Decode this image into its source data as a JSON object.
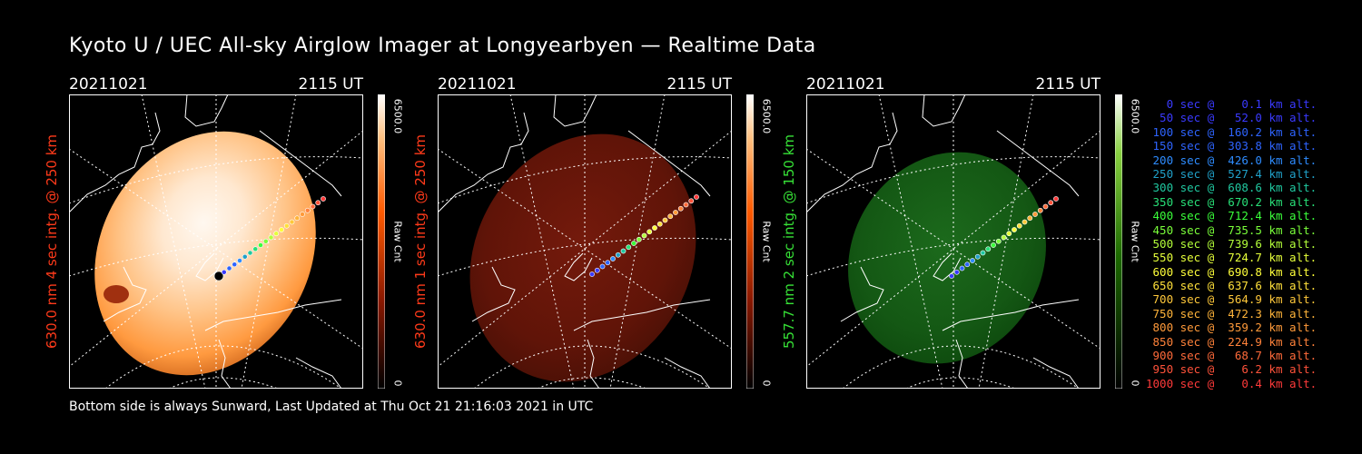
{
  "title": "Kyoto U / UEC All-sky Airglow Imager at Longyearbyen — Realtime Data",
  "footer": "Bottom side is always Sunward, Last Updated at Thu Oct 21 21:16:03 2021 in UTC",
  "panels": [
    {
      "date": "20211021",
      "time": "2115 UT",
      "ylabel": "630.0 nm 4 sec intg. @ 250 km",
      "ylabel_color": "#ff3a1a",
      "cbar_max": "6500.0",
      "cbar_min": "0",
      "cbar_label": "Raw Cnt",
      "scheme": "orange"
    },
    {
      "date": "20211021",
      "time": "2115 UT",
      "ylabel": "630.0 nm 1 sec intg. @ 250 km",
      "ylabel_color": "#ff3a1a",
      "cbar_max": "6500.0",
      "cbar_min": "0",
      "cbar_label": "Raw Cnt",
      "scheme": "red"
    },
    {
      "date": "20211021",
      "time": "2115 UT",
      "ylabel": "557.7 nm 2 sec intg. @ 150 km",
      "ylabel_color": "#36e036",
      "cbar_max": "6500.0",
      "cbar_min": "0",
      "cbar_label": "Raw Cnt",
      "scheme": "green"
    }
  ],
  "legend": [
    {
      "text": "   0 sec @    0.1 km alt.",
      "color": "#3a3aff"
    },
    {
      "text": "  50 sec @   52.0 km alt.",
      "color": "#3a3aff"
    },
    {
      "text": " 100 sec @  160.2 km alt.",
      "color": "#2e64ff"
    },
    {
      "text": " 150 sec @  303.8 km alt.",
      "color": "#2e64ff"
    },
    {
      "text": " 200 sec @  426.0 km alt.",
      "color": "#2e8cff"
    },
    {
      "text": " 250 sec @  527.4 km alt.",
      "color": "#20a0c8"
    },
    {
      "text": " 300 sec @  608.6 km alt.",
      "color": "#20c8a0"
    },
    {
      "text": " 350 sec @  670.2 km alt.",
      "color": "#28e078"
    },
    {
      "text": " 400 sec @  712.4 km alt.",
      "color": "#3aff3a"
    },
    {
      "text": " 450 sec @  735.5 km alt.",
      "color": "#7aff3a"
    },
    {
      "text": " 500 sec @  739.6 km alt.",
      "color": "#b4ff3a"
    },
    {
      "text": " 550 sec @  724.7 km alt.",
      "color": "#e6ff3a"
    },
    {
      "text": " 600 sec @  690.8 km alt.",
      "color": "#ffff3a"
    },
    {
      "text": " 650 sec @  637.6 km alt.",
      "color": "#ffe03a"
    },
    {
      "text": " 700 sec @  564.9 km alt.",
      "color": "#ffc83a"
    },
    {
      "text": " 750 sec @  472.3 km alt.",
      "color": "#ffb43a"
    },
    {
      "text": " 800 sec @  359.2 km alt.",
      "color": "#ff9a3a"
    },
    {
      "text": " 850 sec @  224.9 km alt.",
      "color": "#ff823a"
    },
    {
      "text": " 900 sec @   68.7 km alt.",
      "color": "#ff6a3a"
    },
    {
      "text": " 950 sec @    6.2 km alt.",
      "color": "#ff523a"
    },
    {
      "text": "1000 sec @    0.4 km alt.",
      "color": "#ff3a3a"
    }
  ]
}
